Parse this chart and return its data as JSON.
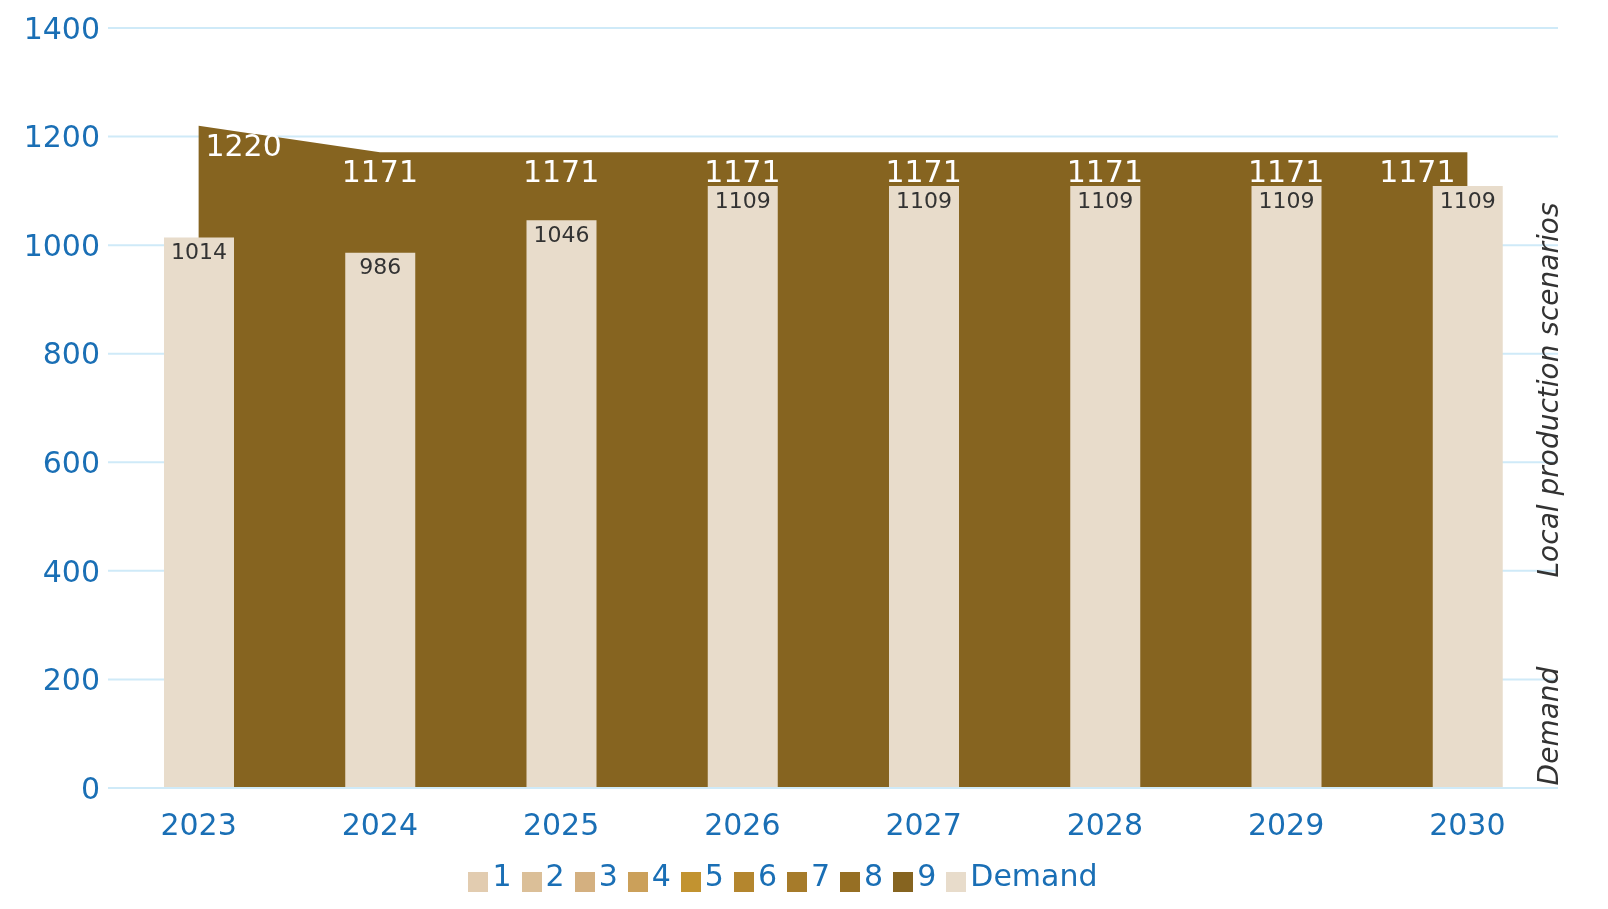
{
  "chart_data": {
    "type": "area",
    "categories": [
      "2023",
      "2024",
      "2025",
      "2026",
      "2027",
      "2028",
      "2029",
      "2030"
    ],
    "series": [
      {
        "name": "1",
        "color": "#e2ccb0",
        "values": [
          null,
          null,
          null,
          null,
          null,
          null,
          null,
          null
        ]
      },
      {
        "name": "2",
        "color": "#dbbf98",
        "values": [
          null,
          null,
          null,
          null,
          null,
          null,
          null,
          null
        ]
      },
      {
        "name": "3",
        "color": "#d4b080",
        "values": [
          null,
          null,
          null,
          null,
          null,
          null,
          null,
          null
        ]
      },
      {
        "name": "4",
        "color": "#cba05a",
        "values": [
          null,
          null,
          null,
          null,
          null,
          null,
          null,
          null
        ]
      },
      {
        "name": "5",
        "color": "#c29330",
        "values": [
          null,
          null,
          null,
          null,
          null,
          null,
          null,
          null
        ]
      },
      {
        "name": "6",
        "color": "#b4862e",
        "values": [
          null,
          null,
          null,
          null,
          null,
          null,
          null,
          null
        ]
      },
      {
        "name": "7",
        "color": "#a67b2a",
        "values": [
          null,
          null,
          null,
          null,
          null,
          null,
          null,
          null
        ]
      },
      {
        "name": "8",
        "color": "#966f24",
        "values": [
          null,
          null,
          null,
          null,
          null,
          null,
          null,
          null
        ]
      },
      {
        "name": "9",
        "color": "#866420",
        "values": [
          1220,
          1171,
          1171,
          1171,
          1171,
          1171,
          1171,
          1171
        ]
      },
      {
        "name": "Demand",
        "type": "bar",
        "color": "#e8dccb",
        "values": [
          1014,
          986,
          1046,
          1109,
          1109,
          1109,
          1109,
          1109
        ]
      }
    ],
    "ylim": [
      0,
      1400
    ],
    "yticks": [
      0,
      200,
      400,
      600,
      800,
      1000,
      1200,
      1400
    ],
    "grid": "y",
    "legend": "bottom",
    "data_labels": true,
    "annotations": [
      "Local production scenarios",
      "Demand"
    ]
  }
}
